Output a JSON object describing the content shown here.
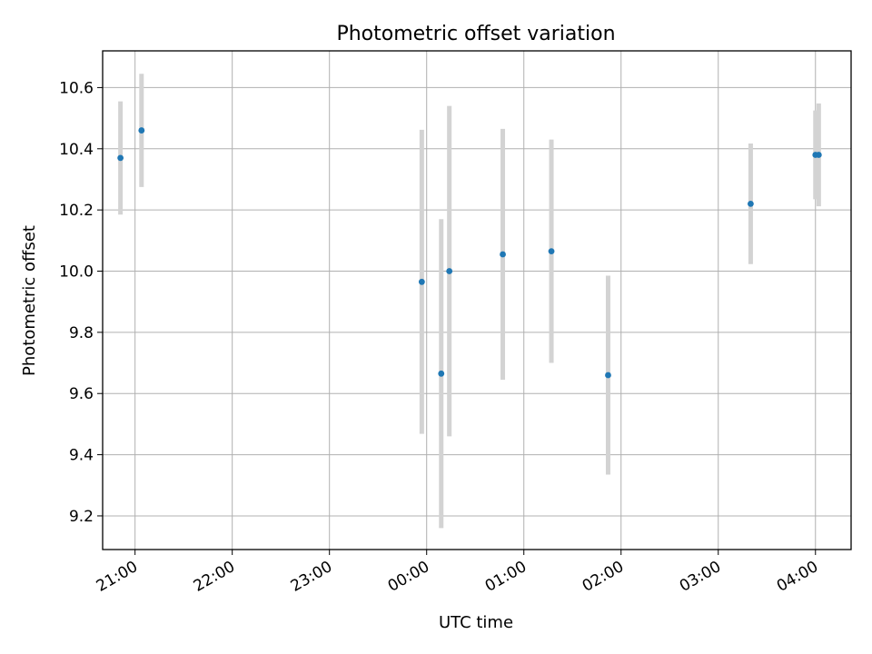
{
  "chart_data": {
    "type": "scatter",
    "title": "Photometric offset variation",
    "xlabel": "UTC time",
    "ylabel": "Photometric offset",
    "x_axis_type": "time",
    "xlim": [
      "20:40",
      "04:22"
    ],
    "ylim": [
      9.09,
      10.72
    ],
    "grid": true,
    "x_ticks": [
      "21:00",
      "22:00",
      "23:00",
      "00:00",
      "01:00",
      "02:00",
      "03:00",
      "04:00"
    ],
    "y_ticks": [
      "9.2",
      "9.4",
      "9.6",
      "9.8",
      "10.0",
      "10.2",
      "10.4",
      "10.6"
    ],
    "marker_color": "#1f77b4",
    "errorbar_color": "#d3d3d3",
    "points": [
      {
        "x": "20:51",
        "y": 10.37,
        "yerr": 0.185
      },
      {
        "x": "21:04",
        "y": 10.46,
        "yerr": 0.185
      },
      {
        "x": "23:57",
        "y": 9.965,
        "yerr": 0.497
      },
      {
        "x": "00:09",
        "y": 9.665,
        "yerr": 0.505
      },
      {
        "x": "00:14",
        "y": 10.0,
        "yerr": 0.54
      },
      {
        "x": "00:47",
        "y": 10.055,
        "yerr": 0.41
      },
      {
        "x": "01:17",
        "y": 10.065,
        "yerr": 0.365
      },
      {
        "x": "01:52",
        "y": 9.66,
        "yerr": 0.325
      },
      {
        "x": "03:20",
        "y": 10.22,
        "yerr": 0.197
      },
      {
        "x": "04:00",
        "y": 10.38,
        "yerr": 0.145
      },
      {
        "x": "04:02",
        "y": 10.38,
        "yerr": 0.168
      }
    ]
  }
}
